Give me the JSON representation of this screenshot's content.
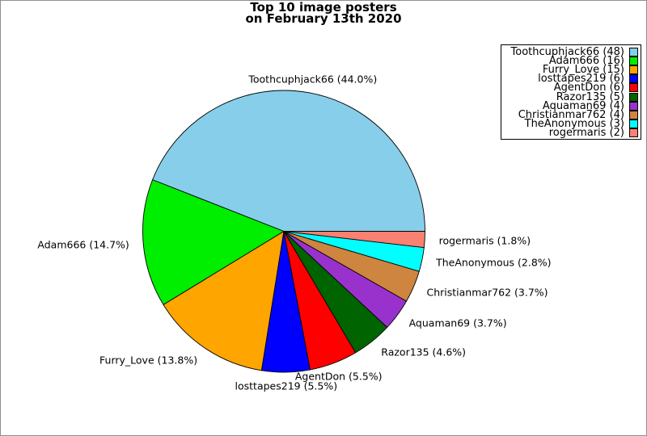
{
  "window": {
    "background_color": "#ffffff",
    "frame_color": "#8f8f8f"
  },
  "chart_data": {
    "type": "pie",
    "title": "Top 10 image posters\non February 13th 2020",
    "categories": [
      "Toothcuphjack66",
      "Adam666",
      "Furry_Love",
      "losttapes219",
      "AgentDon",
      "Razor135",
      "Aquaman69",
      "Christianmar762",
      "TheAnonymous",
      "rogermaris"
    ],
    "values": [
      48,
      16,
      15,
      6,
      6,
      5,
      4,
      4,
      3,
      2
    ],
    "percentages": [
      44.0,
      14.7,
      13.8,
      5.5,
      5.5,
      4.6,
      3.7,
      3.7,
      2.8,
      1.8
    ],
    "slice_labels": [
      "Toothcuphjack66 (44.0%)",
      "Adam666 (14.7%)",
      "Furry_Love (13.8%)",
      "losttapes219 (5.5%)",
      "AgentDon (5.5%)",
      "Razor135 (4.6%)",
      "Aquaman69 (3.7%)",
      "Christianmar762 (3.7%)",
      "TheAnonymous (2.8%)",
      "rogermaris (1.8%)"
    ],
    "legend_labels": [
      "Toothcuphjack66 (48)",
      "Adam666 (16)",
      "Furry_Love (15)",
      "losttapes219 (6)",
      "AgentDon (6)",
      "Razor135 (5)",
      "Aquaman69 (4)",
      "Christianmar762 (4)",
      "TheAnonymous (3)",
      "rogermaris (2)"
    ],
    "colors": [
      "#87CEEB",
      "#00EE00",
      "#FFA500",
      "#0000FF",
      "#FF0000",
      "#006400",
      "#9932CC",
      "#CD853F",
      "#00FFFF",
      "#FA8072"
    ],
    "outline_color": "#000000",
    "start_angle_deg": 0,
    "counterclockwise": true,
    "legend_position": "upper right",
    "legend_marker_side": "right"
  }
}
